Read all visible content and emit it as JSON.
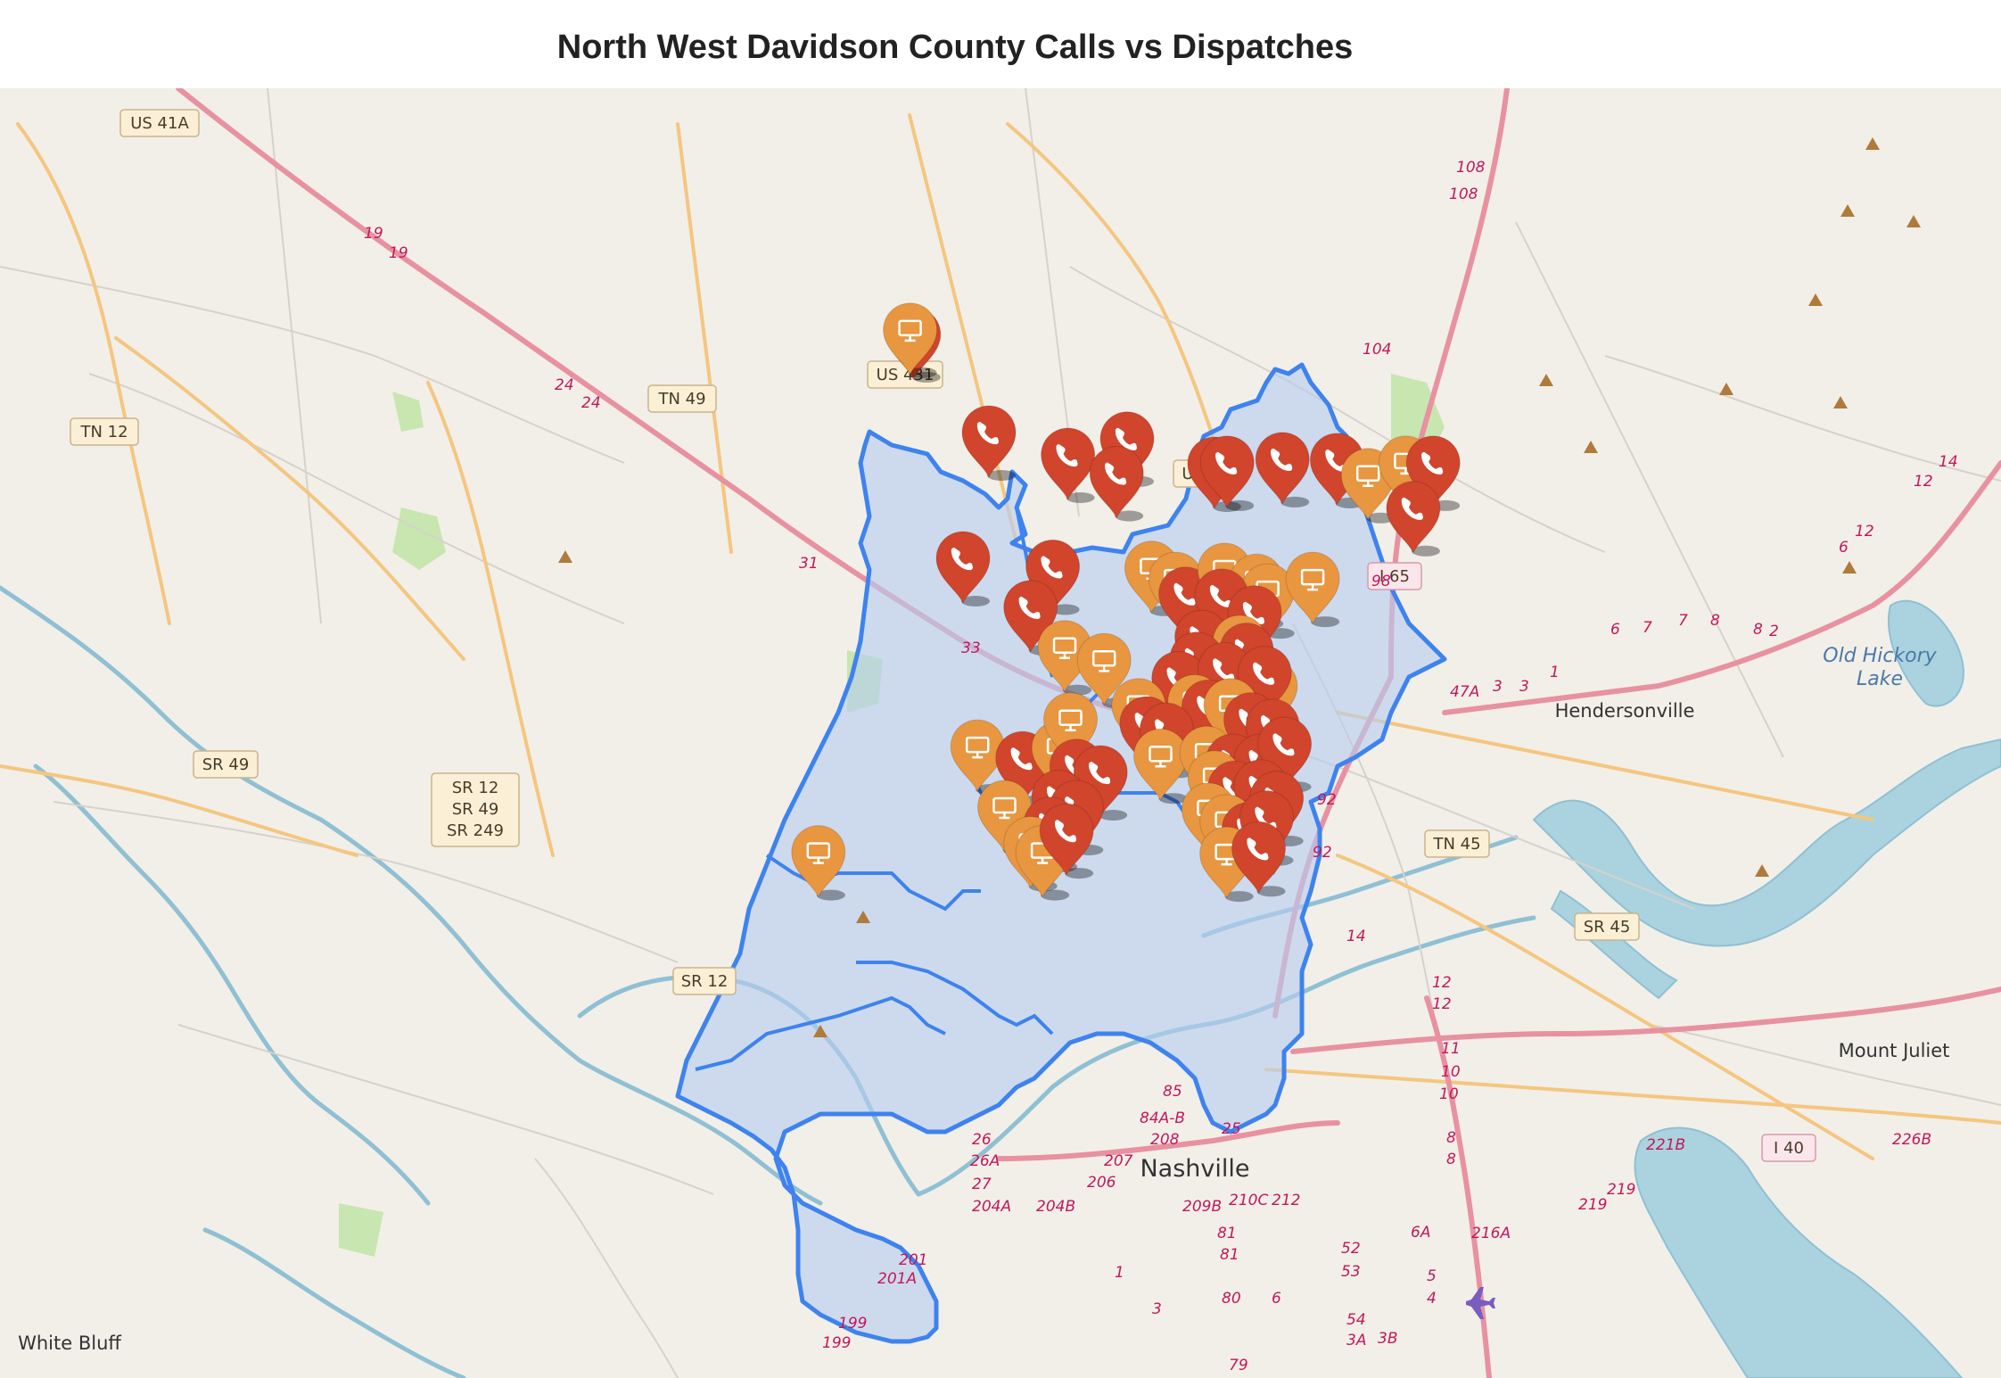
{
  "title": "North West Davidson County Calls vs Dispatches",
  "colors": {
    "call_marker": "#d0452c",
    "dispatch_marker": "#e8963f",
    "district_fill": "#b7cdf0",
    "district_stroke": "#3e83ee"
  },
  "legend_icons": {
    "call": "phone-icon",
    "dispatch": "monitor-icon"
  },
  "labels": {
    "roads": {
      "us41a": "US 41A",
      "tn12": "TN 12",
      "tn49": "TN 49",
      "us431": "US 431",
      "us41": "US 41",
      "i65": "I 65",
      "sr49": "SR 49",
      "sr12_stack": [
        "SR 12",
        "SR 49",
        "SR 249"
      ],
      "sr12b": "SR 12",
      "tn45": "TN 45",
      "sr45": "SR 45",
      "i40": "I 40"
    },
    "places": {
      "nashville": "Nashville",
      "hendersonville": "Hendersonville",
      "mount_juliet": "Mount Juliet",
      "white_bluff": "White Bluff",
      "old_hickory_1": "Old Hickory",
      "old_hickory_2": "Lake"
    },
    "exits": [
      "19",
      "19",
      "24",
      "24",
      "31",
      "33",
      "108",
      "108",
      "104",
      "98",
      "92",
      "92",
      "85",
      "84A-B",
      "208",
      "207",
      "206",
      "26",
      "26A",
      "27",
      "204A",
      "204B",
      "201",
      "201A",
      "199",
      "199",
      "209B",
      "210C",
      "212",
      "81",
      "81",
      "80",
      "79",
      "6",
      "52",
      "53",
      "54",
      "3A",
      "3B",
      "5",
      "4",
      "1",
      "3",
      "216A",
      "6A",
      "219",
      "219",
      "221B",
      "226B",
      "12",
      "12",
      "11",
      "10",
      "10",
      "8",
      "8",
      "14",
      "14",
      "12",
      "12",
      "6",
      "6",
      "7",
      "7",
      "8",
      "8",
      "2",
      "3",
      "3",
      "1",
      "47A",
      "25"
    ]
  },
  "markers": [
    {
      "type": "call",
      "x": 0.4567,
      "y": 0.2254
    },
    {
      "type": "dispatch",
      "x": 0.4548,
      "y": 0.2219
    },
    {
      "type": "call",
      "x": 0.4942,
      "y": 0.3015
    },
    {
      "type": "call",
      "x": 0.5337,
      "y": 0.3188
    },
    {
      "type": "call",
      "x": 0.5633,
      "y": 0.3062
    },
    {
      "type": "call",
      "x": 0.558,
      "y": 0.333
    },
    {
      "type": "call",
      "x": 0.6069,
      "y": 0.3257
    },
    {
      "type": "call",
      "x": 0.6133,
      "y": 0.325
    },
    {
      "type": "call",
      "x": 0.6409,
      "y": 0.3222
    },
    {
      "type": "call",
      "x": 0.6682,
      "y": 0.3229
    },
    {
      "type": "dispatch",
      "x": 0.6837,
      "y": 0.3346
    },
    {
      "type": "dispatch",
      "x": 0.7025,
      "y": 0.325
    },
    {
      "type": "call",
      "x": 0.7162,
      "y": 0.325
    },
    {
      "type": "call",
      "x": 0.7063,
      "y": 0.3602
    },
    {
      "type": "call",
      "x": 0.4813,
      "y": 0.399
    },
    {
      "type": "call",
      "x": 0.5261,
      "y": 0.4055
    },
    {
      "type": "call",
      "x": 0.515,
      "y": 0.437
    },
    {
      "type": "dispatch",
      "x": 0.5321,
      "y": 0.468
    },
    {
      "type": "dispatch",
      "x": 0.5518,
      "y": 0.478
    },
    {
      "type": "dispatch",
      "x": 0.5755,
      "y": 0.4065
    },
    {
      "type": "dispatch",
      "x": 0.5875,
      "y": 0.415
    },
    {
      "type": "call",
      "x": 0.5925,
      "y": 0.4265
    },
    {
      "type": "dispatch",
      "x": 0.612,
      "y": 0.408
    },
    {
      "type": "dispatch",
      "x": 0.628,
      "y": 0.4165
    },
    {
      "type": "dispatch",
      "x": 0.6335,
      "y": 0.424
    },
    {
      "type": "dispatch",
      "x": 0.656,
      "y": 0.415
    },
    {
      "type": "call",
      "x": 0.6105,
      "y": 0.428
    },
    {
      "type": "call",
      "x": 0.627,
      "y": 0.441
    },
    {
      "type": "call",
      "x": 0.6005,
      "y": 0.46
    },
    {
      "type": "dispatch",
      "x": 0.6195,
      "y": 0.464
    },
    {
      "type": "call",
      "x": 0.623,
      "y": 0.47
    },
    {
      "type": "call",
      "x": 0.598,
      "y": 0.477
    },
    {
      "type": "call",
      "x": 0.589,
      "y": 0.492
    },
    {
      "type": "call",
      "x": 0.612,
      "y": 0.485
    },
    {
      "type": "dispatch",
      "x": 0.635,
      "y": 0.498
    },
    {
      "type": "call",
      "x": 0.632,
      "y": 0.488
    },
    {
      "type": "dispatch",
      "x": 0.597,
      "y": 0.51
    },
    {
      "type": "call",
      "x": 0.604,
      "y": 0.514
    },
    {
      "type": "dispatch",
      "x": 0.615,
      "y": 0.513
    },
    {
      "type": "call",
      "x": 0.625,
      "y": 0.524
    },
    {
      "type": "call",
      "x": 0.636,
      "y": 0.529
    },
    {
      "type": "dispatch",
      "x": 0.569,
      "y": 0.513
    },
    {
      "type": "call",
      "x": 0.573,
      "y": 0.527
    },
    {
      "type": "call",
      "x": 0.583,
      "y": 0.532
    },
    {
      "type": "dispatch",
      "x": 0.58,
      "y": 0.552
    },
    {
      "type": "dispatch",
      "x": 0.603,
      "y": 0.55
    },
    {
      "type": "call",
      "x": 0.616,
      "y": 0.556
    },
    {
      "type": "call",
      "x": 0.63,
      "y": 0.556
    },
    {
      "type": "call",
      "x": 0.642,
      "y": 0.543
    },
    {
      "type": "dispatch",
      "x": 0.4885,
      "y": 0.545
    },
    {
      "type": "call",
      "x": 0.511,
      "y": 0.554
    },
    {
      "type": "dispatch",
      "x": 0.529,
      "y": 0.546
    },
    {
      "type": "dispatch",
      "x": 0.535,
      "y": 0.524
    },
    {
      "type": "call",
      "x": 0.538,
      "y": 0.56
    },
    {
      "type": "call",
      "x": 0.55,
      "y": 0.565
    },
    {
      "type": "dispatch",
      "x": 0.502,
      "y": 0.592
    },
    {
      "type": "call",
      "x": 0.529,
      "y": 0.584
    },
    {
      "type": "call",
      "x": 0.538,
      "y": 0.592
    },
    {
      "type": "call",
      "x": 0.525,
      "y": 0.605
    },
    {
      "type": "dispatch",
      "x": 0.515,
      "y": 0.62
    },
    {
      "type": "dispatch",
      "x": 0.521,
      "y": 0.627
    },
    {
      "type": "call",
      "x": 0.533,
      "y": 0.61
    },
    {
      "type": "dispatch",
      "x": 0.607,
      "y": 0.569
    },
    {
      "type": "call",
      "x": 0.617,
      "y": 0.577
    },
    {
      "type": "call",
      "x": 0.63,
      "y": 0.576
    },
    {
      "type": "call",
      "x": 0.638,
      "y": 0.585
    },
    {
      "type": "dispatch",
      "x": 0.604,
      "y": 0.594
    },
    {
      "type": "dispatch",
      "x": 0.613,
      "y": 0.603
    },
    {
      "type": "call",
      "x": 0.624,
      "y": 0.609
    },
    {
      "type": "call",
      "x": 0.633,
      "y": 0.6
    },
    {
      "type": "dispatch",
      "x": 0.613,
      "y": 0.628
    },
    {
      "type": "call",
      "x": 0.629,
      "y": 0.624
    },
    {
      "type": "dispatch",
      "x": 0.409,
      "y": 0.627
    }
  ]
}
